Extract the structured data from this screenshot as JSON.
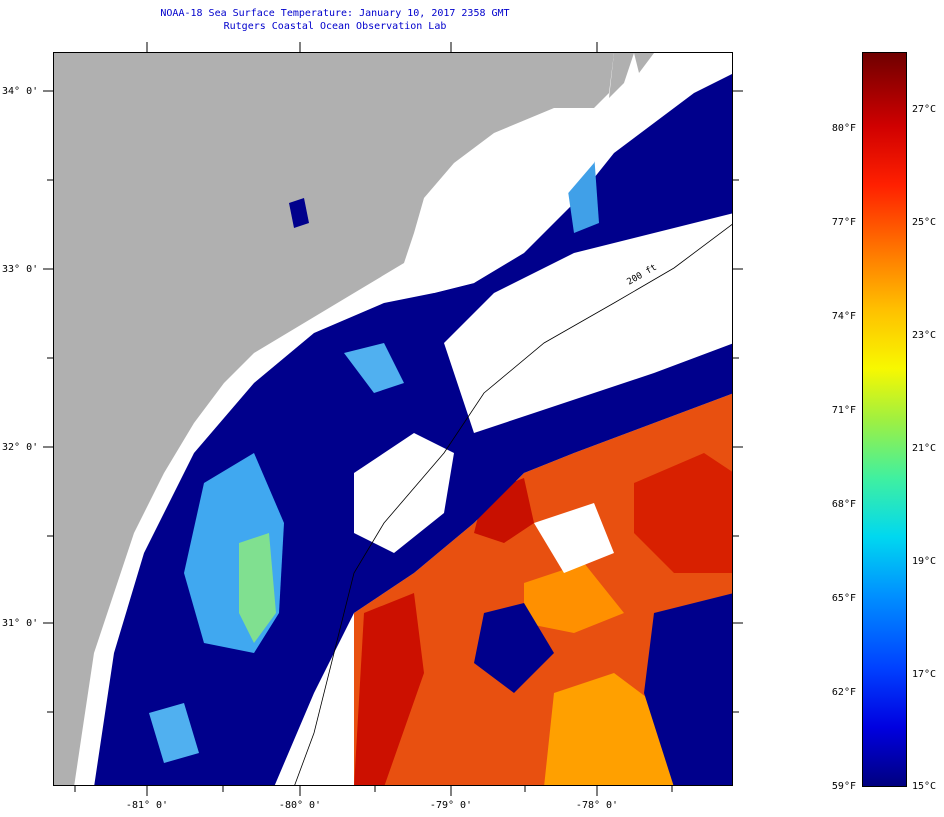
{
  "header": {
    "title_line1": "NOAA-18 Sea Surface Temperature:  January 10, 2017 2358 GMT",
    "title_line2": "Rutgers Coastal Ocean Observation Lab"
  },
  "map": {
    "latitude_labels": [
      "34° 0'",
      "33° 0'",
      "32° 0'",
      "31° 0'"
    ],
    "longitude_labels": [
      "-81° 0'",
      "-80° 0'",
      "-79° 0'",
      "-78° 0'"
    ],
    "isobath_label": "200 ft",
    "colors": {
      "land": "#b0b0b0",
      "cloud": "#ffffff",
      "cold_water": "#00008c",
      "warm_water": "#e01000"
    }
  },
  "colorbar": {
    "fahrenheit_labels": [
      "80°F",
      "77°F",
      "74°F",
      "71°F",
      "68°F",
      "65°F",
      "62°F",
      "59°F"
    ],
    "celsius_labels": [
      "27°C",
      "25°C",
      "23°C",
      "21°C",
      "19°C",
      "17°C",
      "15°C"
    ],
    "min_f": 59,
    "max_f": 82,
    "min_c": 15,
    "max_c": 28
  }
}
